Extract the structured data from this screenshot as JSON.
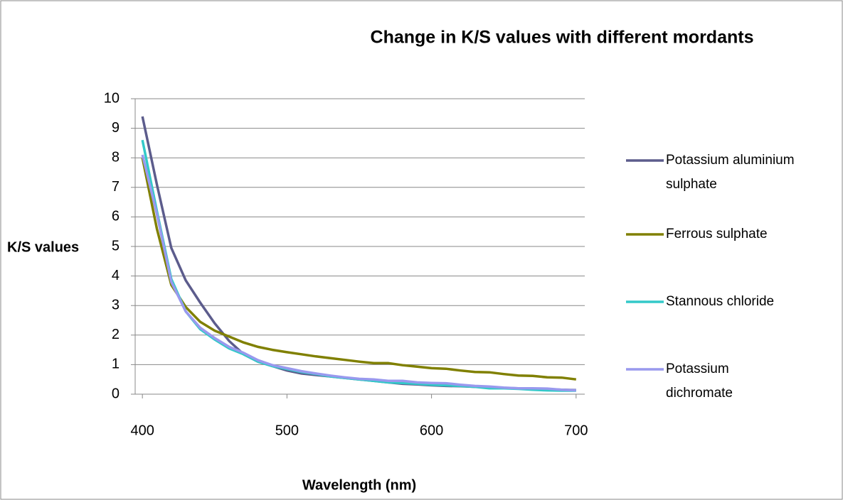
{
  "chart_data": {
    "type": "line",
    "title": "Change in K/S values with different mordants",
    "x_label": "Wavelength (nm)",
    "y_label": "K/S values",
    "x": [
      400,
      410,
      420,
      430,
      440,
      450,
      460,
      470,
      480,
      490,
      500,
      510,
      520,
      530,
      540,
      550,
      560,
      570,
      580,
      590,
      600,
      610,
      620,
      630,
      640,
      650,
      660,
      670,
      680,
      690,
      700
    ],
    "series": [
      {
        "name": "Potassium aluminium sulphate",
        "color": "#5c5c8c",
        "values": [
          9.4,
          7.1,
          4.95,
          3.85,
          3.1,
          2.4,
          1.8,
          1.35,
          1.1,
          0.95,
          0.8,
          0.7,
          0.65,
          0.6,
          0.55,
          0.5,
          0.45,
          0.4,
          0.35,
          0.33,
          0.3,
          0.28,
          0.27,
          0.25,
          0.23,
          0.21,
          0.2,
          0.18,
          0.17,
          0.15,
          0.14
        ]
      },
      {
        "name": "Ferrous sulphate",
        "color": "#808000",
        "values": [
          8.0,
          5.6,
          3.7,
          2.95,
          2.45,
          2.15,
          1.95,
          1.75,
          1.6,
          1.5,
          1.42,
          1.35,
          1.28,
          1.22,
          1.16,
          1.1,
          1.05,
          1.05,
          0.98,
          0.93,
          0.88,
          0.86,
          0.8,
          0.75,
          0.74,
          0.68,
          0.63,
          0.62,
          0.57,
          0.56,
          0.5
        ]
      },
      {
        "name": "Stannous chloride",
        "color": "#33c9c9",
        "values": [
          8.6,
          6.2,
          3.9,
          2.8,
          2.2,
          1.85,
          1.55,
          1.35,
          1.1,
          0.95,
          0.85,
          0.75,
          0.68,
          0.6,
          0.55,
          0.5,
          0.45,
          0.4,
          0.38,
          0.35,
          0.32,
          0.3,
          0.28,
          0.25,
          0.2,
          0.2,
          0.18,
          0.15,
          0.13,
          0.12,
          0.12
        ]
      },
      {
        "name": "Potassium dichromate",
        "color": "#9999ee",
        "values": [
          8.1,
          6.1,
          3.8,
          2.8,
          2.25,
          1.9,
          1.6,
          1.4,
          1.15,
          0.98,
          0.88,
          0.78,
          0.7,
          0.63,
          0.57,
          0.52,
          0.5,
          0.45,
          0.45,
          0.4,
          0.38,
          0.37,
          0.32,
          0.28,
          0.26,
          0.22,
          0.2,
          0.2,
          0.19,
          0.15,
          0.13
        ]
      }
    ],
    "xlim": [
      395,
      706
    ],
    "xticks": [
      400,
      500,
      600,
      700
    ],
    "ylim": [
      0,
      10
    ],
    "yticks": [
      0,
      1,
      2,
      3,
      4,
      5,
      6,
      7,
      8,
      9,
      10
    ],
    "grid": true,
    "legend": "right"
  }
}
